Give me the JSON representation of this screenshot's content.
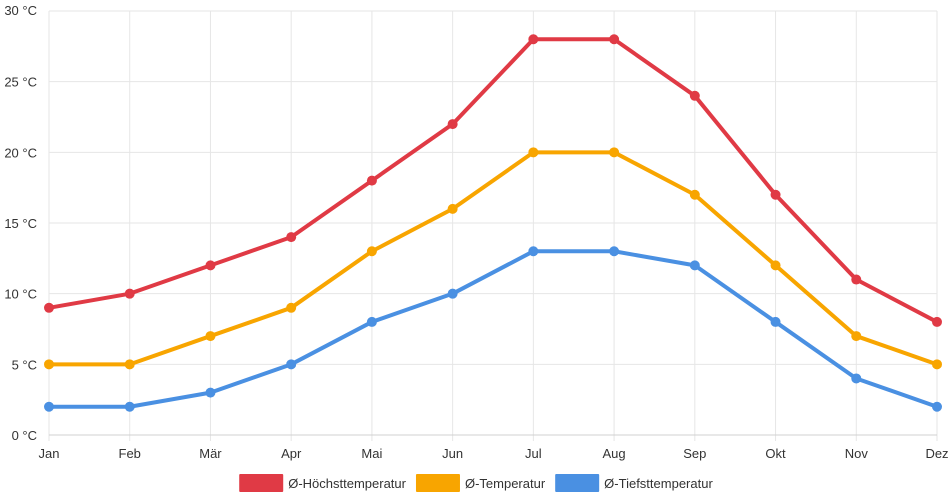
{
  "chart_data": {
    "type": "line",
    "categories": [
      "Jan",
      "Feb",
      "Mär",
      "Apr",
      "Mai",
      "Jun",
      "Jul",
      "Aug",
      "Sep",
      "Okt",
      "Nov",
      "Dez"
    ],
    "series": [
      {
        "name": "Ø-Höchsttemperatur",
        "color": "#e03a45",
        "values": [
          9,
          10,
          12,
          14,
          18,
          22,
          28,
          28,
          24,
          17,
          11,
          8
        ]
      },
      {
        "name": "Ø-Temperatur",
        "color": "#f8a500",
        "values": [
          5,
          5,
          7,
          9,
          13,
          16,
          20,
          20,
          17,
          12,
          7,
          5
        ]
      },
      {
        "name": "Ø-Tiefsttemperatur",
        "color": "#4a90e2",
        "values": [
          2,
          2,
          3,
          5,
          8,
          10,
          13,
          13,
          12,
          8,
          4,
          2
        ]
      }
    ],
    "y_ticks": [
      "0 °C",
      "5 °C",
      "10 °C",
      "15 °C",
      "20 °C",
      "25 °C",
      "30 °C"
    ],
    "ylim": [
      0,
      30
    ],
    "y_step": 5,
    "grid": true,
    "legend": "bottom-center",
    "title": "",
    "xlabel": "",
    "ylabel": ""
  }
}
